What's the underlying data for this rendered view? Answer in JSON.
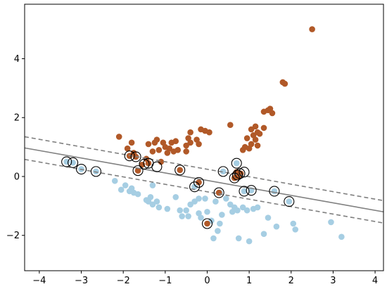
{
  "chart_data": {
    "type": "scatter",
    "title": "",
    "xlabel": "",
    "ylabel": "",
    "xlim": [
      -4.35,
      4.2
    ],
    "ylim": [
      -3.2,
      5.85
    ],
    "grid": false,
    "legend": "none",
    "x_ticks": [
      -4,
      -3,
      -2,
      -1,
      0,
      1,
      2,
      3,
      4
    ],
    "y_ticks": [
      -2,
      0,
      2,
      4
    ],
    "x_tick_labels": [
      "−4",
      "−3",
      "−2",
      "−1",
      "0",
      "1",
      "2",
      "3",
      "4"
    ],
    "y_tick_labels": [
      "−2",
      "0",
      "2",
      "4"
    ],
    "colors": {
      "class_0": "#a6cee3",
      "class_1": "#b15928",
      "decision_line": "#808080",
      "support_ring": "#000000"
    },
    "decision_boundary": {
      "center": {
        "p1": [
          -4.35,
          0.97
        ],
        "p2": [
          4.2,
          -1.2
        ]
      },
      "margin_upper": {
        "p1": [
          -4.35,
          1.35
        ],
        "p2": [
          4.2,
          -0.82
        ]
      },
      "margin_lower": {
        "p1": [
          -4.35,
          0.58
        ],
        "p2": [
          4.2,
          -1.58
        ]
      }
    },
    "series": [
      {
        "class": 0,
        "color": "#a6cee3",
        "points": [
          [
            -3.35,
            0.5
          ],
          [
            -3.2,
            0.47
          ],
          [
            -3.0,
            0.25
          ],
          [
            -2.65,
            0.17
          ],
          [
            -2.2,
            -0.15
          ],
          [
            -2.05,
            -0.45
          ],
          [
            -1.95,
            -0.3
          ],
          [
            -1.85,
            -0.5
          ],
          [
            -1.8,
            -0.4
          ],
          [
            -1.75,
            -0.55
          ],
          [
            -1.65,
            -0.6
          ],
          [
            -1.45,
            -0.8
          ],
          [
            -1.4,
            -0.85
          ],
          [
            -1.35,
            -0.7
          ],
          [
            -1.3,
            -0.95
          ],
          [
            -1.3,
            -0.3
          ],
          [
            -1.2,
            -0.85
          ],
          [
            -1.15,
            -1.05
          ],
          [
            -0.95,
            -1.1
          ],
          [
            -0.75,
            -0.7
          ],
          [
            -0.65,
            -1.15
          ],
          [
            -0.6,
            -1.35
          ],
          [
            -0.5,
            -1.15
          ],
          [
            -0.45,
            -1.35
          ],
          [
            -0.4,
            -0.95
          ],
          [
            -0.3,
            -0.35
          ],
          [
            -0.3,
            -0.85
          ],
          [
            -0.2,
            -0.75
          ],
          [
            -0.2,
            -1.25
          ],
          [
            -0.15,
            -1.4
          ],
          [
            -0.05,
            -0.75
          ],
          [
            0.0,
            -1.2
          ],
          [
            0.1,
            -1.5
          ],
          [
            0.15,
            -2.1
          ],
          [
            0.2,
            -0.85
          ],
          [
            0.25,
            -1.85
          ],
          [
            0.3,
            -0.55
          ],
          [
            0.3,
            -1.6
          ],
          [
            0.35,
            -1.3
          ],
          [
            0.38,
            0.17
          ],
          [
            0.45,
            -0.75
          ],
          [
            0.55,
            -0.95
          ],
          [
            0.6,
            -1.2
          ],
          [
            0.65,
            -1.05
          ],
          [
            0.7,
            0.45
          ],
          [
            0.72,
            -1.15
          ],
          [
            0.75,
            -2.1
          ],
          [
            0.85,
            -1.05
          ],
          [
            0.88,
            -0.5
          ],
          [
            0.95,
            -1.15
          ],
          [
            1.0,
            -2.2
          ],
          [
            1.05,
            -0.47
          ],
          [
            1.1,
            -1.1
          ],
          [
            1.2,
            -1.05
          ],
          [
            1.35,
            -1.95
          ],
          [
            1.45,
            -1.4
          ],
          [
            1.6,
            -0.5
          ],
          [
            1.65,
            -1.7
          ],
          [
            1.95,
            -0.85
          ],
          [
            2.05,
            -1.6
          ],
          [
            2.1,
            -1.8
          ],
          [
            2.95,
            -1.55
          ],
          [
            3.2,
            -2.05
          ]
        ]
      },
      {
        "class": 1,
        "color": "#b15928",
        "points": [
          [
            -2.1,
            1.35
          ],
          [
            -1.9,
            0.95
          ],
          [
            -1.85,
            0.7
          ],
          [
            -1.8,
            1.15
          ],
          [
            -1.75,
            0.8
          ],
          [
            -1.7,
            0.67
          ],
          [
            -1.65,
            0.2
          ],
          [
            -1.55,
            0.4
          ],
          [
            -1.45,
            0.6
          ],
          [
            -1.4,
            0.45
          ],
          [
            -1.4,
            1.1
          ],
          [
            -1.3,
            0.85
          ],
          [
            -1.25,
            1.15
          ],
          [
            -1.2,
            1.25
          ],
          [
            -1.15,
            0.9
          ],
          [
            -1.1,
            0.5
          ],
          [
            -1.05,
            1.15
          ],
          [
            -1.0,
            1.0
          ],
          [
            -0.95,
            0.8
          ],
          [
            -0.9,
            0.95
          ],
          [
            -0.85,
            1.15
          ],
          [
            -0.8,
            0.85
          ],
          [
            -0.75,
            1.2
          ],
          [
            -0.7,
            0.9
          ],
          [
            -0.65,
            0.22
          ],
          [
            -0.5,
            1.05
          ],
          [
            -0.5,
            0.85
          ],
          [
            -0.45,
            1.3
          ],
          [
            -0.4,
            1.15
          ],
          [
            -0.4,
            1.5
          ],
          [
            -0.25,
            1.25
          ],
          [
            -0.2,
            -0.2
          ],
          [
            -0.2,
            1.1
          ],
          [
            -0.15,
            1.6
          ],
          [
            -0.05,
            1.55
          ],
          [
            0.0,
            -1.6
          ],
          [
            0.05,
            1.5
          ],
          [
            0.28,
            -0.55
          ],
          [
            0.55,
            1.75
          ],
          [
            0.65,
            -0.05
          ],
          [
            0.7,
            0.05
          ],
          [
            0.7,
            0.15
          ],
          [
            0.75,
            0.0
          ],
          [
            0.8,
            0.1
          ],
          [
            0.85,
            0.9
          ],
          [
            0.9,
            1.0
          ],
          [
            0.95,
            1.3
          ],
          [
            1.0,
            0.95
          ],
          [
            1.05,
            1.1
          ],
          [
            1.05,
            1.6
          ],
          [
            1.1,
            1.4
          ],
          [
            1.15,
            1.25
          ],
          [
            1.15,
            1.7
          ],
          [
            1.2,
            1.5
          ],
          [
            1.2,
            1.05
          ],
          [
            1.25,
            1.45
          ],
          [
            1.35,
            1.65
          ],
          [
            1.35,
            2.2
          ],
          [
            1.45,
            2.25
          ],
          [
            1.5,
            2.3
          ],
          [
            1.55,
            2.15
          ],
          [
            1.8,
            3.2
          ],
          [
            1.85,
            3.15
          ],
          [
            2.5,
            5.0
          ]
        ]
      }
    ],
    "support_vectors": [
      [
        -3.35,
        0.5
      ],
      [
        -3.2,
        0.47
      ],
      [
        -3.0,
        0.25
      ],
      [
        -2.65,
        0.17
      ],
      [
        -1.85,
        0.7
      ],
      [
        -1.7,
        0.67
      ],
      [
        -1.65,
        0.2
      ],
      [
        -1.5,
        0.42
      ],
      [
        -1.4,
        0.45
      ],
      [
        -1.2,
        0.33
      ],
      [
        -0.65,
        0.22
      ],
      [
        -0.3,
        -0.35
      ],
      [
        -0.2,
        -0.2
      ],
      [
        0.0,
        -1.6
      ],
      [
        0.28,
        -0.55
      ],
      [
        0.38,
        0.17
      ],
      [
        0.65,
        -0.05
      ],
      [
        0.7,
        0.45
      ],
      [
        0.72,
        0.05
      ],
      [
        0.78,
        0.1
      ],
      [
        0.88,
        0.15
      ],
      [
        0.88,
        -0.5
      ],
      [
        1.05,
        -0.47
      ],
      [
        1.6,
        -0.5
      ],
      [
        1.95,
        -0.85
      ]
    ]
  }
}
